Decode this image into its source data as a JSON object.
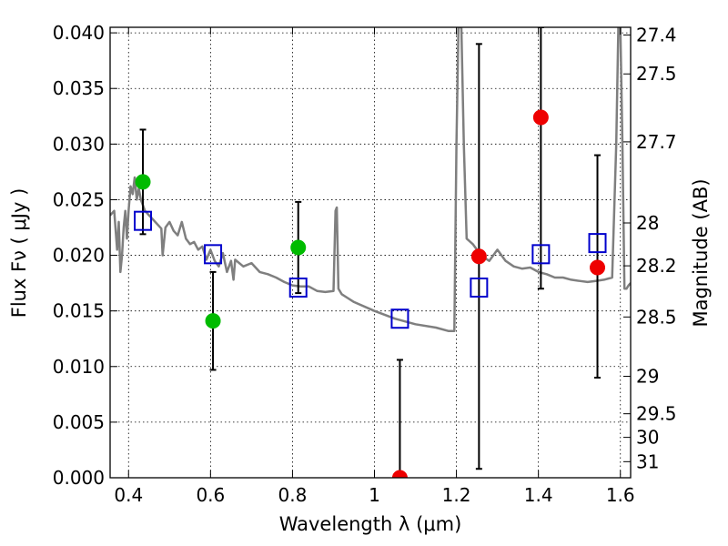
{
  "chart_data": {
    "type": "scatter",
    "xlabel": "Wavelength  λ (μm)",
    "ylabel": "Flux  Fν  ( μJy )",
    "y2label": "Magnitude (AB)",
    "xlim": [
      0.355,
      1.625
    ],
    "ylim": [
      0.0,
      0.0405
    ],
    "xticks": [
      0.4,
      0.6,
      0.8,
      1.0,
      1.2,
      1.4,
      1.6
    ],
    "xticklabels": [
      "0.4",
      "0.6",
      "0.8",
      "1",
      "1.2",
      "1.4",
      "1.6"
    ],
    "yticks": [
      0.0,
      0.005,
      0.01,
      0.015,
      0.02,
      0.025,
      0.03,
      0.035,
      0.04
    ],
    "yticklabels": [
      "0.000",
      "0.005",
      "0.010",
      "0.015",
      "0.020",
      "0.025",
      "0.030",
      "0.035",
      "0.040"
    ],
    "y2ticks": [
      27.4,
      27.5,
      27.7,
      28,
      28.2,
      28.5,
      29,
      29.5,
      30,
      31
    ],
    "y2ticklabels": [
      "27.4",
      "27.5",
      "27.7",
      "28",
      "28.2",
      "28.5",
      "29",
      "29.5",
      "30",
      "31"
    ],
    "grid": true,
    "colors": {
      "green": "#00bb00",
      "red": "#ee0000",
      "model_boxes": "#0000cc",
      "spectrum": "#7f7f7f",
      "errorbar": "#000000"
    },
    "model_spectrum": {
      "x": [
        0.355,
        0.365,
        0.372,
        0.376,
        0.38,
        0.384,
        0.388,
        0.392,
        0.396,
        0.4,
        0.405,
        0.41,
        0.415,
        0.42,
        0.425,
        0.43,
        0.44,
        0.45,
        0.46,
        0.47,
        0.48,
        0.483,
        0.49,
        0.5,
        0.51,
        0.52,
        0.53,
        0.54,
        0.55,
        0.56,
        0.57,
        0.58,
        0.59,
        0.6,
        0.61,
        0.62,
        0.63,
        0.64,
        0.65,
        0.656,
        0.66,
        0.68,
        0.7,
        0.72,
        0.74,
        0.76,
        0.78,
        0.8,
        0.82,
        0.84,
        0.86,
        0.88,
        0.9,
        0.905,
        0.908,
        0.912,
        0.92,
        0.95,
        1.0,
        1.05,
        1.1,
        1.15,
        1.18,
        1.195,
        1.2,
        1.205,
        1.21,
        1.212,
        1.218,
        1.225,
        1.24,
        1.26,
        1.28,
        1.3,
        1.32,
        1.34,
        1.36,
        1.38,
        1.4,
        1.42,
        1.44,
        1.46,
        1.48,
        1.5,
        1.52,
        1.54,
        1.56,
        1.58,
        1.59,
        1.595,
        1.6,
        1.605,
        1.61,
        1.615,
        1.62,
        1.625
      ],
      "y": [
        0.0236,
        0.024,
        0.0205,
        0.023,
        0.0185,
        0.02,
        0.0225,
        0.024,
        0.0215,
        0.024,
        0.0262,
        0.0255,
        0.027,
        0.025,
        0.026,
        0.025,
        0.024,
        0.0236,
        0.0232,
        0.0228,
        0.0224,
        0.02,
        0.0225,
        0.023,
        0.0222,
        0.0218,
        0.023,
        0.0215,
        0.021,
        0.0212,
        0.0205,
        0.0208,
        0.0196,
        0.0205,
        0.0195,
        0.019,
        0.0202,
        0.0185,
        0.0195,
        0.0178,
        0.0196,
        0.019,
        0.0193,
        0.0185,
        0.0183,
        0.018,
        0.0176,
        0.0173,
        0.0172,
        0.0172,
        0.0168,
        0.0167,
        0.0168,
        0.024,
        0.0243,
        0.017,
        0.0165,
        0.0158,
        0.015,
        0.0143,
        0.0138,
        0.0135,
        0.0132,
        0.0132,
        0.03,
        0.0405,
        0.0405,
        0.0405,
        0.03,
        0.0215,
        0.021,
        0.02,
        0.0195,
        0.0205,
        0.0195,
        0.019,
        0.0188,
        0.0189,
        0.0185,
        0.0183,
        0.018,
        0.018,
        0.0178,
        0.0177,
        0.0176,
        0.0177,
        0.0178,
        0.018,
        0.03,
        0.0405,
        0.0405,
        0.03,
        0.017,
        0.017,
        0.0173,
        0.0175
      ]
    },
    "series": [
      {
        "marker": "circle",
        "color": "green",
        "points": [
          {
            "x": 0.435,
            "y": 0.0266,
            "err_low": 0.0219,
            "err_high": 0.0313
          },
          {
            "x": 0.606,
            "y": 0.0141,
            "err_low": 0.0097,
            "err_high": 0.0185
          },
          {
            "x": 0.814,
            "y": 0.0207,
            "err_low": 0.0166,
            "err_high": 0.0248
          }
        ]
      },
      {
        "marker": "circle",
        "color": "red",
        "points": [
          {
            "x": 1.062,
            "y": 0.0,
            "err_low": 0.0,
            "err_high": 0.0106
          },
          {
            "x": 1.255,
            "y": 0.0199,
            "err_low": 0.0008,
            "err_high": 0.039
          },
          {
            "x": 1.406,
            "y": 0.0324,
            "err_low": 0.017,
            "err_high": 0.0405
          },
          {
            "x": 1.544,
            "y": 0.0189,
            "err_low": 0.009,
            "err_high": 0.029
          }
        ]
      },
      {
        "marker": "square",
        "color": "model_boxes",
        "points": [
          {
            "x": 0.435,
            "y": 0.0231
          },
          {
            "x": 0.606,
            "y": 0.0201
          },
          {
            "x": 0.814,
            "y": 0.0171
          },
          {
            "x": 1.062,
            "y": 0.0143
          },
          {
            "x": 1.255,
            "y": 0.0171
          },
          {
            "x": 1.406,
            "y": 0.0201
          },
          {
            "x": 1.544,
            "y": 0.0211
          }
        ]
      }
    ]
  }
}
